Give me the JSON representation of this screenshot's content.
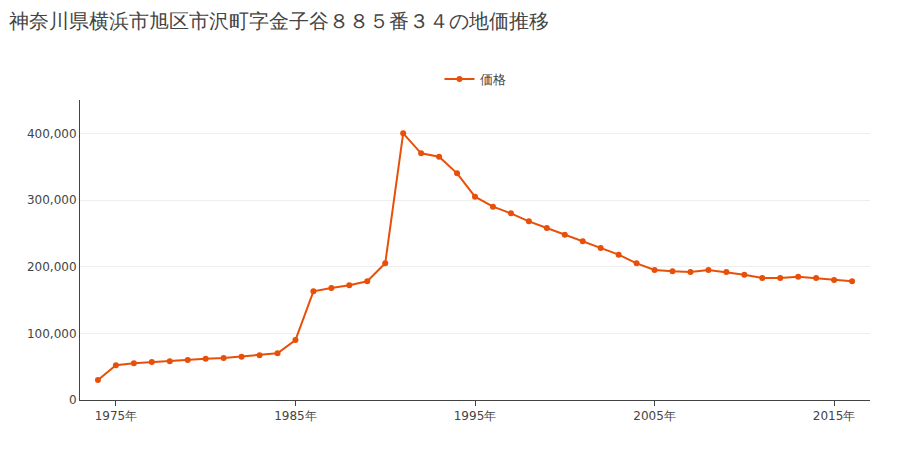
{
  "chart_data": {
    "type": "line",
    "title": "神奈川県横浜市旭区市沢町字金子谷８８５番３４の地価推移",
    "x": [
      1974,
      1975,
      1976,
      1977,
      1978,
      1979,
      1980,
      1981,
      1982,
      1983,
      1984,
      1985,
      1986,
      1987,
      1988,
      1989,
      1990,
      1991,
      1992,
      1993,
      1994,
      1995,
      1996,
      1997,
      1998,
      1999,
      2000,
      2001,
      2002,
      2003,
      2004,
      2005,
      2006,
      2007,
      2008,
      2009,
      2010,
      2011,
      2012,
      2013,
      2014,
      2015,
      2016
    ],
    "series": [
      {
        "name": "価格",
        "color": "#e8500a",
        "marker": "circle",
        "values": [
          30000,
          52000,
          55000,
          57000,
          58000,
          60000,
          62000,
          63000,
          65000,
          67000,
          70000,
          90000,
          163000,
          168000,
          172000,
          178000,
          205000,
          400000,
          370000,
          365000,
          340000,
          305000,
          290000,
          280000,
          268000,
          258000,
          248000,
          238000,
          228000,
          218000,
          205000,
          195000,
          193000,
          192000,
          195000,
          192000,
          188000,
          183000,
          183000,
          185000,
          183000,
          180000,
          178000
        ]
      }
    ],
    "xlim": [
      1973,
      2017
    ],
    "xticks": [
      {
        "value": 1975,
        "label": "1975年"
      },
      {
        "value": 1985,
        "label": "1985年"
      },
      {
        "value": 1995,
        "label": "1995年"
      },
      {
        "value": 2005,
        "label": "2005年"
      },
      {
        "value": 2015,
        "label": "2015年"
      }
    ],
    "ylim": [
      0,
      450000
    ],
    "yticks": [
      0,
      {
        "value": 100000,
        "label": "100,000"
      },
      {
        "value": 200000,
        "label": "200,000"
      },
      {
        "value": 300000,
        "label": "300,000"
      },
      {
        "value": 400000,
        "label": "400,000"
      }
    ],
    "grid": "y",
    "legend": "top"
  }
}
